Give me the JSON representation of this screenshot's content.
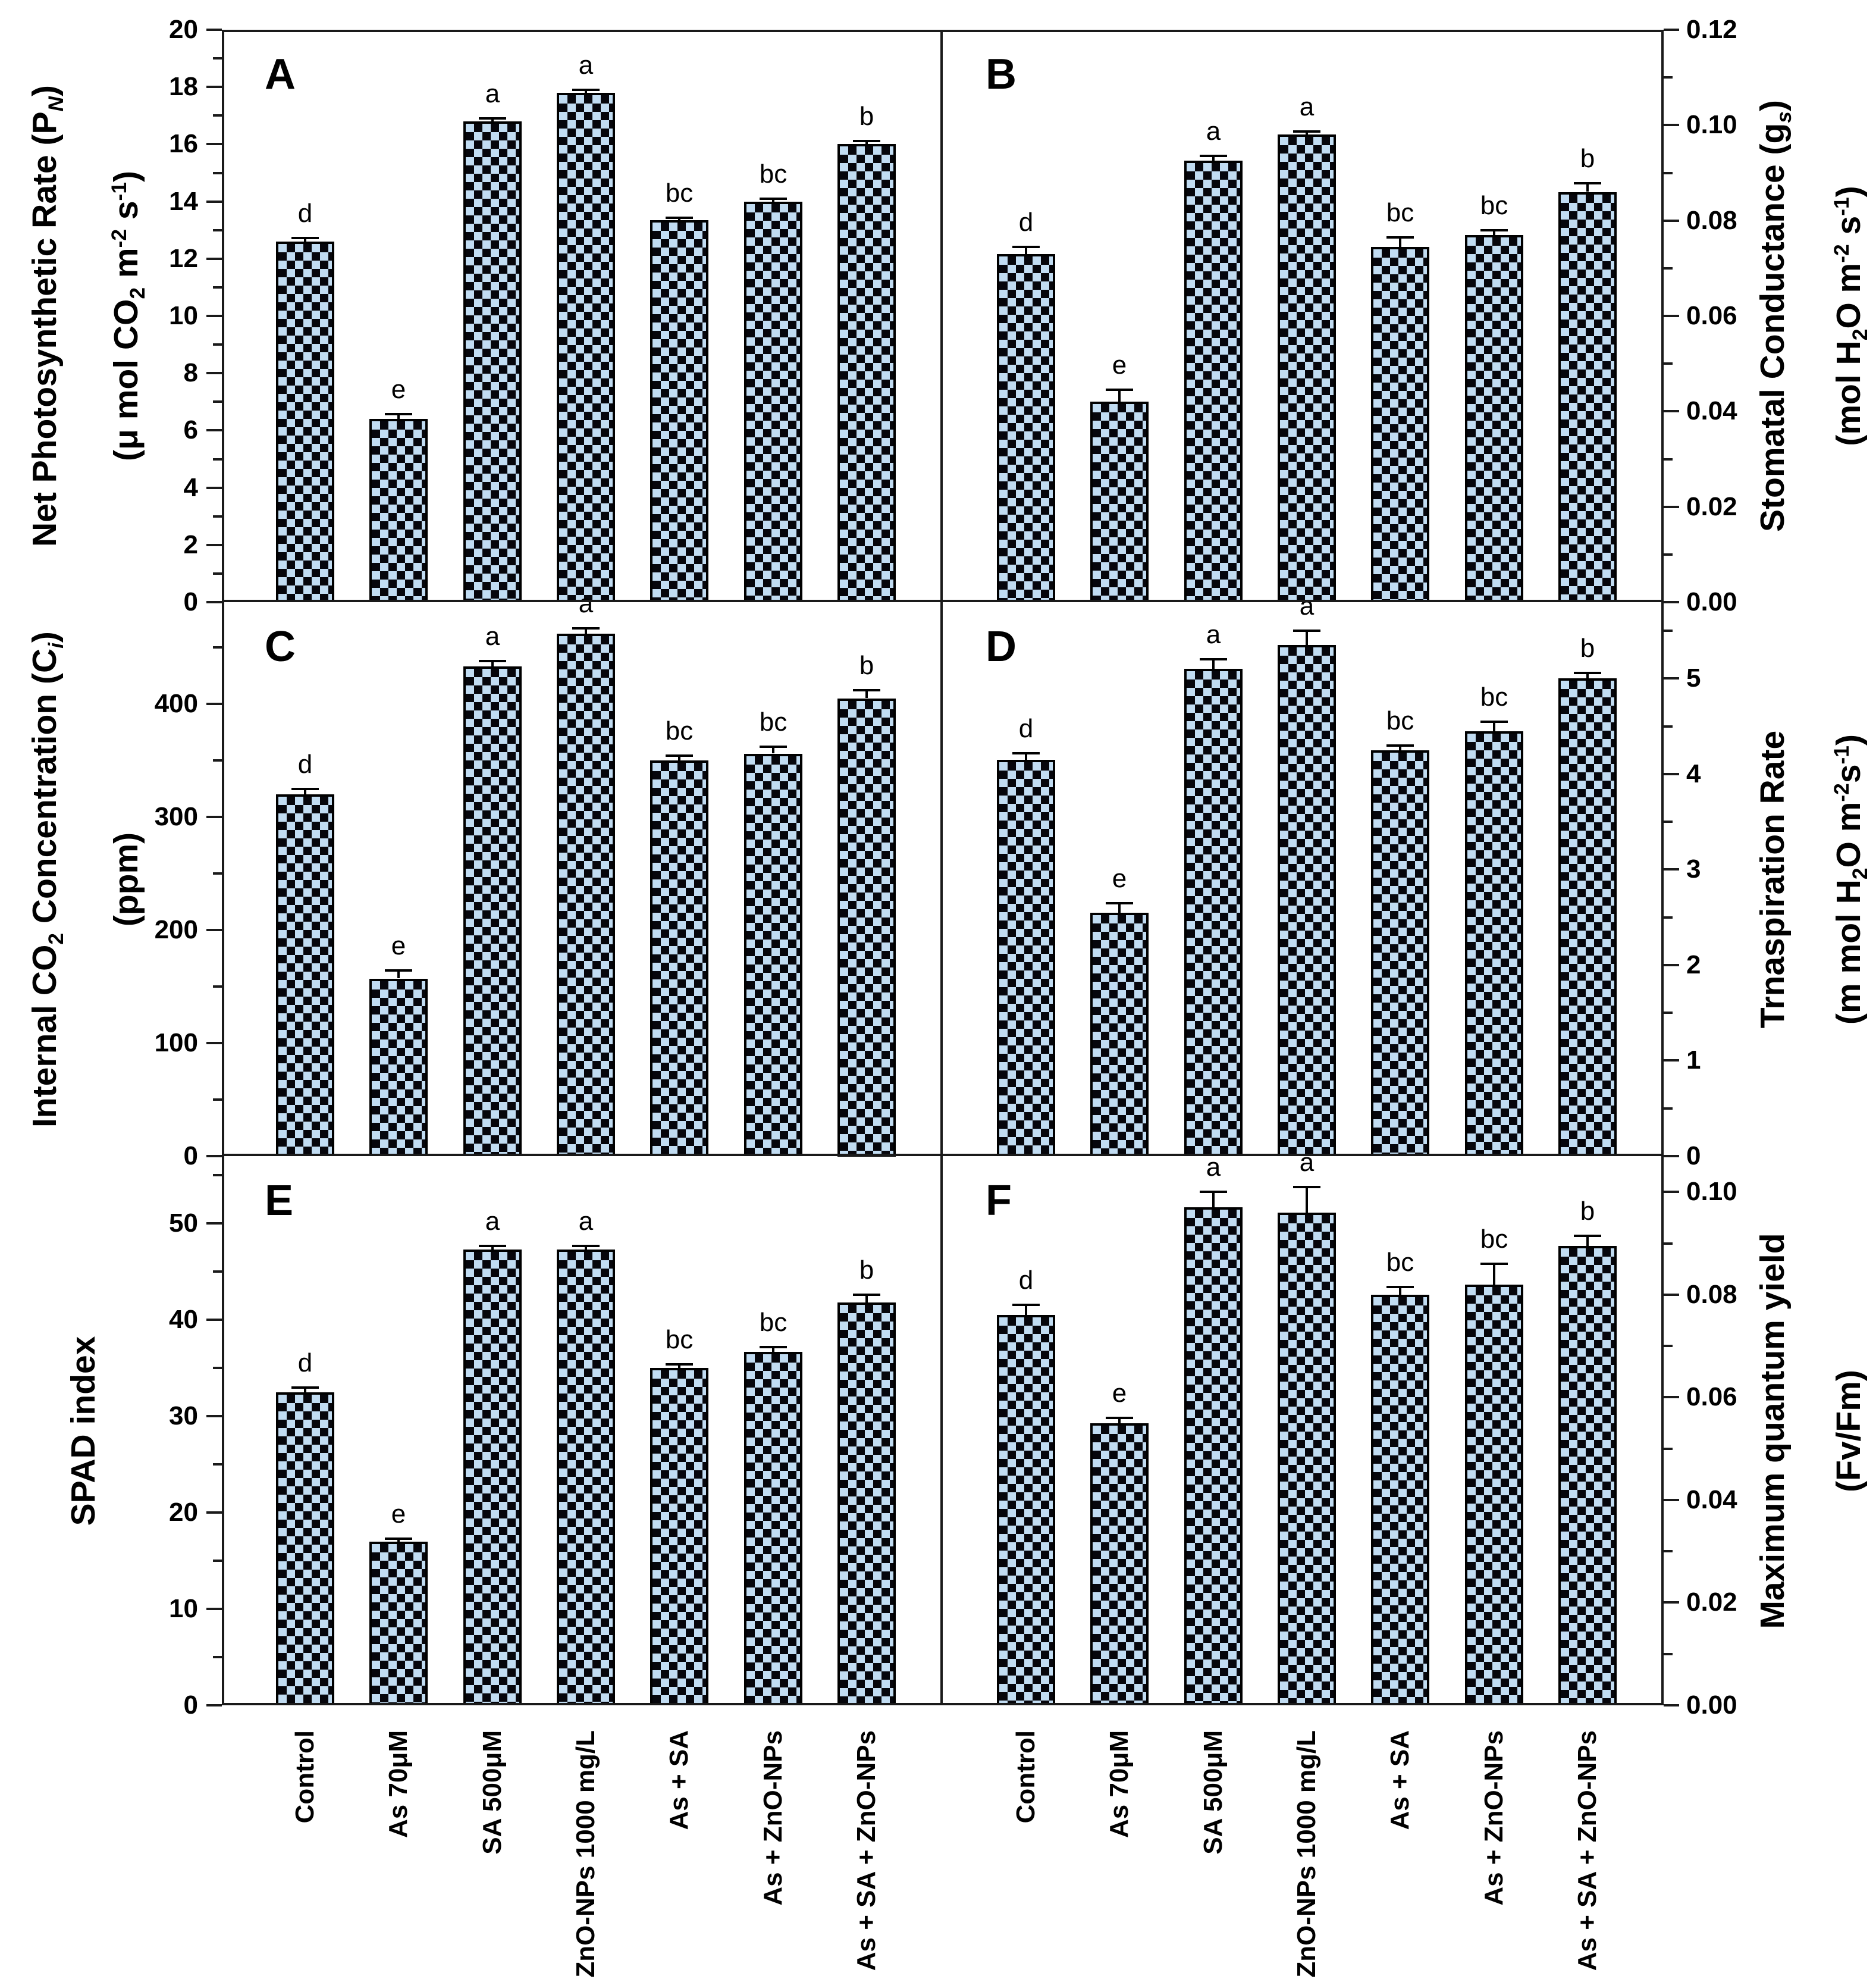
{
  "figure": {
    "background": "#ffffff",
    "bar_fill": "#c1dcf2",
    "bar_checker": "#06060c",
    "axis_color": "#1a1a1a",
    "categories": [
      "Control",
      "As 70μM",
      "SA 500μM",
      "ZnO-NPs 1000 mg/L",
      "As + SA",
      "As + ZnO-NPs",
      "As + SA + ZnO-NPs"
    ]
  },
  "chart_data": [
    {
      "type": "bar",
      "panel_label": "A",
      "col": 0,
      "row": 0,
      "axis_side": "left",
      "title": "Net Photosynthetic Rate (PN) (μ mol CO2 m-2 s-1)",
      "categories": [
        "Control",
        "As 70μM",
        "SA 500μM",
        "ZnO-NPs 1000 mg/L",
        "As + SA",
        "As + ZnO-NPs",
        "As + SA + ZnO-NPs"
      ],
      "values": [
        12.6,
        6.4,
        16.8,
        17.8,
        13.35,
        14.0,
        16.0
      ],
      "errors": [
        0.12,
        0.18,
        0.1,
        0.1,
        0.08,
        0.1,
        0.12
      ],
      "sig_letters": [
        "d",
        "e",
        "a",
        "a",
        "bc",
        "bc",
        "b"
      ],
      "ylim": [
        0,
        20
      ],
      "minor_step": 1,
      "yticks": [
        {
          "v": 0,
          "label": "0"
        },
        {
          "v": 2,
          "label": "2"
        },
        {
          "v": 4,
          "label": "4"
        },
        {
          "v": 6,
          "label": "6"
        },
        {
          "v": 8,
          "label": "8"
        },
        {
          "v": 10,
          "label": "10"
        },
        {
          "v": 12,
          "label": "12"
        },
        {
          "v": 14,
          "label": "14"
        },
        {
          "v": 16,
          "label": "16"
        },
        {
          "v": 18,
          "label": "18"
        },
        {
          "v": 20,
          "label": "20"
        }
      ],
      "ylabel_lines": [
        [
          {
            "s": "Net Photosynthetic Rate (P"
          },
          {
            "s": "N",
            "k": "subi"
          },
          {
            "s": ")"
          }
        ],
        [
          {
            "s": "(μ mol CO"
          },
          {
            "s": "2",
            "k": "sub"
          },
          {
            "s": " m"
          },
          {
            "s": "-2",
            "k": "sup"
          },
          {
            "s": " s"
          },
          {
            "s": "-1",
            "k": "sup"
          },
          {
            "s": ")"
          }
        ]
      ]
    },
    {
      "type": "bar",
      "panel_label": "B",
      "col": 1,
      "row": 0,
      "axis_side": "right",
      "title": "Stomatal Conductance (gs) (mol H2O m-2 s-1)",
      "categories": [
        "Control",
        "As 70μM",
        "SA 500μM",
        "ZnO-NPs 1000 mg/L",
        "As + SA",
        "As + ZnO-NPs",
        "As + SA + ZnO-NPs"
      ],
      "values": [
        0.073,
        0.042,
        0.0925,
        0.098,
        0.0745,
        0.077,
        0.086
      ],
      "errors": [
        0.0015,
        0.0025,
        0.001,
        0.0007,
        0.002,
        0.001,
        0.0018
      ],
      "sig_letters": [
        "d",
        "e",
        "a",
        "a",
        "bc",
        "bc",
        "b"
      ],
      "ylim": [
        0,
        0.12
      ],
      "minor_step": 0.01,
      "yticks": [
        {
          "v": 0,
          "label": "0.00"
        },
        {
          "v": 0.02,
          "label": "0.02"
        },
        {
          "v": 0.04,
          "label": "0.04"
        },
        {
          "v": 0.06,
          "label": "0.06"
        },
        {
          "v": 0.08,
          "label": "0.08"
        },
        {
          "v": 0.1,
          "label": "0.10"
        },
        {
          "v": 0.12,
          "label": "0.12"
        }
      ],
      "ylabel_lines": [
        [
          {
            "s": "Stomatal Conductance (g"
          },
          {
            "s": "s",
            "k": "subi"
          },
          {
            "s": ")"
          }
        ],
        [
          {
            "s": "(mol H"
          },
          {
            "s": "2",
            "k": "sub"
          },
          {
            "s": "O m"
          },
          {
            "s": "-2",
            "k": "sup"
          },
          {
            "s": " s"
          },
          {
            "s": "-1",
            "k": "sup"
          },
          {
            "s": ")"
          }
        ]
      ]
    },
    {
      "type": "bar",
      "panel_label": "C",
      "col": 0,
      "row": 1,
      "axis_side": "left",
      "title": "Internal CO2 Concentration (Ci) (ppm)",
      "categories": [
        "Control",
        "As 70μM",
        "SA 500μM",
        "ZnO-NPs 1000 mg/L",
        "As + SA",
        "As + ZnO-NPs",
        "As + SA + ZnO-NPs"
      ],
      "values": [
        320,
        157,
        433,
        462,
        350,
        356,
        405
      ],
      "errors": [
        5,
        7,
        5,
        5,
        4,
        6,
        7
      ],
      "sig_letters": [
        "d",
        "e",
        "a",
        "a",
        "bc",
        "bc",
        "b"
      ],
      "ylim": [
        0,
        490
      ],
      "minor_step": 50,
      "yticks": [
        {
          "v": 0,
          "label": "0"
        },
        {
          "v": 100,
          "label": "100"
        },
        {
          "v": 200,
          "label": "200"
        },
        {
          "v": 300,
          "label": "300"
        },
        {
          "v": 400,
          "label": "400"
        }
      ],
      "ylabel_lines": [
        [
          {
            "s": "Internal CO"
          },
          {
            "s": "2",
            "k": "sub"
          },
          {
            "s": " Concentration (C"
          },
          {
            "s": "i",
            "k": "subi"
          },
          {
            "s": ")"
          }
        ],
        [
          {
            "s": "(ppm)"
          }
        ]
      ]
    },
    {
      "type": "bar",
      "panel_label": "D",
      "col": 1,
      "row": 1,
      "axis_side": "right",
      "title": "Trnaspiration Rate (m mol H2O m-2s-1)",
      "categories": [
        "Control",
        "As 70μM",
        "SA 500μM",
        "ZnO-NPs 1000 mg/L",
        "As + SA",
        "As + ZnO-NPs",
        "As + SA + ZnO-NPs"
      ],
      "values": [
        4.15,
        2.55,
        5.1,
        5.35,
        4.25,
        4.45,
        5.0
      ],
      "errors": [
        0.07,
        0.1,
        0.1,
        0.15,
        0.05,
        0.1,
        0.06
      ],
      "sig_letters": [
        "d",
        "e",
        "a",
        "a",
        "bc",
        "bc",
        "b"
      ],
      "ylim": [
        0,
        5.8
      ],
      "minor_step": 0.5,
      "yticks": [
        {
          "v": 0,
          "label": "0"
        },
        {
          "v": 1,
          "label": "1"
        },
        {
          "v": 2,
          "label": "2"
        },
        {
          "v": 3,
          "label": "3"
        },
        {
          "v": 4,
          "label": "4"
        },
        {
          "v": 5,
          "label": "5"
        }
      ],
      "ylabel_lines": [
        [
          {
            "s": "Trnaspiration Rate"
          }
        ],
        [
          {
            "s": "(m mol H"
          },
          {
            "s": "2",
            "k": "sub"
          },
          {
            "s": "O m"
          },
          {
            "s": "-2",
            "k": "sup"
          },
          {
            "s": "s"
          },
          {
            "s": "-1",
            "k": "sup"
          },
          {
            "s": ")"
          }
        ]
      ]
    },
    {
      "type": "bar",
      "panel_label": "E",
      "col": 0,
      "row": 2,
      "axis_side": "left",
      "title": "SPAD index",
      "categories": [
        "Control",
        "As 70μM",
        "SA 500μM",
        "ZnO-NPs 1000 mg/L",
        "As + SA",
        "As + ZnO-NPs",
        "As + SA + ZnO-NPs"
      ],
      "values": [
        32.5,
        17.0,
        47.3,
        47.3,
        35.0,
        36.7,
        41.8
      ],
      "errors": [
        0.5,
        0.3,
        0.4,
        0.4,
        0.4,
        0.5,
        0.8
      ],
      "sig_letters": [
        "d",
        "e",
        "a",
        "a",
        "bc",
        "bc",
        "b"
      ],
      "ylim": [
        0,
        57
      ],
      "minor_step": 5,
      "yticks": [
        {
          "v": 0,
          "label": "0"
        },
        {
          "v": 10,
          "label": "10"
        },
        {
          "v": 20,
          "label": "20"
        },
        {
          "v": 30,
          "label": "30"
        },
        {
          "v": 40,
          "label": "40"
        },
        {
          "v": 50,
          "label": "50"
        }
      ],
      "ylabel_lines": [
        [
          {
            "s": "SPAD index"
          }
        ]
      ]
    },
    {
      "type": "bar",
      "panel_label": "F",
      "col": 1,
      "row": 2,
      "axis_side": "right",
      "title": "Maximum quantum yield (Fv/Fm)",
      "categories": [
        "Control",
        "As 70μM",
        "SA 500μM",
        "ZnO-NPs 1000 mg/L",
        "As + SA",
        "As + ZnO-NPs",
        "As + SA + ZnO-NPs"
      ],
      "values": [
        0.076,
        0.055,
        0.097,
        0.096,
        0.08,
        0.082,
        0.0895
      ],
      "errors": [
        0.002,
        0.001,
        0.003,
        0.005,
        0.0015,
        0.004,
        0.002
      ],
      "sig_letters": [
        "d",
        "e",
        "a",
        "a",
        "bc",
        "bc",
        "b"
      ],
      "ylim": [
        0,
        0.107
      ],
      "minor_step": 0.01,
      "yticks": [
        {
          "v": 0,
          "label": "0.00"
        },
        {
          "v": 0.02,
          "label": "0.02"
        },
        {
          "v": 0.04,
          "label": "0.04"
        },
        {
          "v": 0.06,
          "label": "0.06"
        },
        {
          "v": 0.08,
          "label": "0.08"
        },
        {
          "v": 0.1,
          "label": "0.10"
        }
      ],
      "ylabel_lines": [
        [
          {
            "s": "Maximum quantum yield"
          }
        ],
        [
          {
            "s": "(Fv/Fm)"
          }
        ]
      ]
    }
  ]
}
